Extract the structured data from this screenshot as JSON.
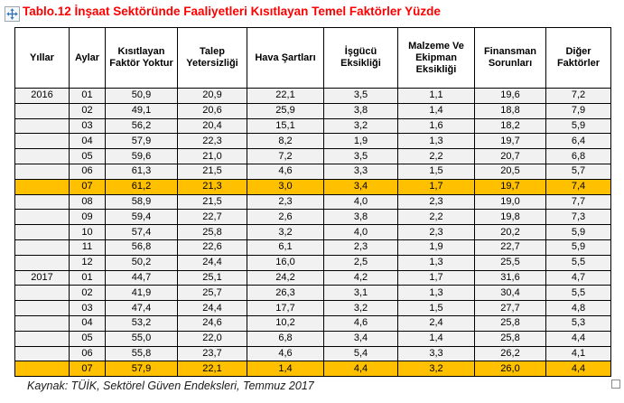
{
  "title": "Tablo.12 İnşaat Sektöründe Faaliyetleri Kısıtlayan Temel Faktörler Yüzde",
  "source": "Kaynak: TÜİK, Sektörel Güven Endeksleri, Temmuz 2017",
  "icons": {
    "table_move_handle": "four-direction-move-arrows",
    "table_resize_handle": "small-square-outline"
  },
  "colors": {
    "title_red": "#FF0000",
    "highlight": "#FFC000",
    "cell_background": "#F1F1F1",
    "header_background": "#FFFFFF",
    "border": "#000000",
    "move_arrow_blue": "#2E74B5"
  },
  "chart_data": {
    "type": "table",
    "title": "Tablo.12 İnşaat Sektöründe Faaliyetleri Kısıtlayan Temel Faktörler Yüzde",
    "categories": [
      "Yıllar",
      "Aylar",
      "Kısıtlayan Faktör Yoktur",
      "Talep Yetersizliği",
      "Hava Şartları",
      "İşgücü Eksikliği",
      "Malzeme Ve Ekipman Eksikliği",
      "Finansman Sorunları",
      "Diğer Faktörler"
    ]
  },
  "table": {
    "headers": [
      "Yıllar",
      "Aylar",
      "Kısıtlayan Faktör Yoktur",
      "Talep Yetersizliği",
      "Hava Şartları",
      "İşgücü Eksikliği",
      "Malzeme Ve Ekipman Eksikliği",
      "Finansman Sorunları",
      "Diğer Faktörler"
    ],
    "rows": [
      {
        "year": "2016",
        "month": "01",
        "values": [
          "50,9",
          "20,9",
          "22,1",
          "3,5",
          "1,1",
          "19,6",
          "7,2"
        ],
        "highlighted": false
      },
      {
        "year": "",
        "month": "02",
        "values": [
          "49,1",
          "20,6",
          "25,9",
          "3,8",
          "1,4",
          "18,8",
          "7,9"
        ],
        "highlighted": false
      },
      {
        "year": "",
        "month": "03",
        "values": [
          "56,2",
          "20,4",
          "15,1",
          "3,2",
          "1,6",
          "18,2",
          "5,9"
        ],
        "highlighted": false
      },
      {
        "year": "",
        "month": "04",
        "values": [
          "57,9",
          "22,3",
          "8,2",
          "1,9",
          "1,3",
          "19,7",
          "6,4"
        ],
        "highlighted": false
      },
      {
        "year": "",
        "month": "05",
        "values": [
          "59,6",
          "21,0",
          "7,2",
          "3,5",
          "2,2",
          "20,7",
          "6,8"
        ],
        "highlighted": false
      },
      {
        "year": "",
        "month": "06",
        "values": [
          "61,3",
          "21,5",
          "4,6",
          "3,3",
          "1,5",
          "20,5",
          "5,7"
        ],
        "highlighted": false
      },
      {
        "year": "",
        "month": "07",
        "values": [
          "61,2",
          "21,3",
          "3,0",
          "3,4",
          "1,7",
          "19,7",
          "7,4"
        ],
        "highlighted": true
      },
      {
        "year": "",
        "month": "08",
        "values": [
          "58,9",
          "21,5",
          "2,3",
          "4,0",
          "2,3",
          "19,0",
          "7,7"
        ],
        "highlighted": false
      },
      {
        "year": "",
        "month": "09",
        "values": [
          "59,4",
          "22,7",
          "2,6",
          "3,8",
          "2,2",
          "19,8",
          "7,3"
        ],
        "highlighted": false
      },
      {
        "year": "",
        "month": "10",
        "values": [
          "57,4",
          "25,8",
          "3,2",
          "4,0",
          "2,3",
          "20,2",
          "5,9"
        ],
        "highlighted": false
      },
      {
        "year": "",
        "month": "11",
        "values": [
          "56,8",
          "22,6",
          "6,1",
          "2,3",
          "1,9",
          "22,7",
          "5,9"
        ],
        "highlighted": false
      },
      {
        "year": "",
        "month": "12",
        "values": [
          "50,2",
          "24,4",
          "16,0",
          "2,5",
          "1,3",
          "25,5",
          "5,5"
        ],
        "highlighted": false
      },
      {
        "year": "2017",
        "month": "01",
        "values": [
          "44,7",
          "25,1",
          "24,2",
          "4,2",
          "1,7",
          "31,6",
          "4,7"
        ],
        "highlighted": false
      },
      {
        "year": "",
        "month": "02",
        "values": [
          "41,9",
          "25,7",
          "26,3",
          "3,1",
          "1,3",
          "30,4",
          "5,5"
        ],
        "highlighted": false
      },
      {
        "year": "",
        "month": "03",
        "values": [
          "47,4",
          "24,4",
          "17,7",
          "3,2",
          "1,5",
          "27,7",
          "4,8"
        ],
        "highlighted": false
      },
      {
        "year": "",
        "month": "04",
        "values": [
          "53,2",
          "24,6",
          "10,2",
          "4,6",
          "2,4",
          "25,8",
          "5,3"
        ],
        "highlighted": false
      },
      {
        "year": "",
        "month": "05",
        "values": [
          "55,0",
          "22,0",
          "6,8",
          "3,4",
          "1,4",
          "25,8",
          "4,4"
        ],
        "highlighted": false
      },
      {
        "year": "",
        "month": "06",
        "values": [
          "55,8",
          "23,7",
          "4,6",
          "5,4",
          "3,3",
          "26,2",
          "4,1"
        ],
        "highlighted": false
      },
      {
        "year": "",
        "month": "07",
        "values": [
          "57,9",
          "22,1",
          "1,4",
          "4,4",
          "3,2",
          "26,0",
          "4,4"
        ],
        "highlighted": true
      }
    ]
  }
}
